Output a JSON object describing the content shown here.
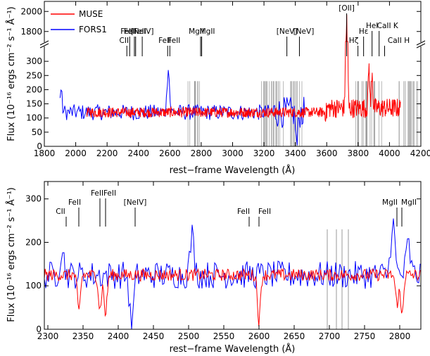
{
  "chart_data": [
    {
      "type": "line",
      "panel": "top",
      "xlabel": "rest−frame Wavelength (Å)",
      "ylabel": "Flux (10⁻¹⁶ ergs cm⁻² s⁻¹ Å⁻¹)",
      "xlim": [
        1800,
        4200
      ],
      "xticks": [
        "1800",
        "2000",
        "2200",
        "2400",
        "2600",
        "2800",
        "3000",
        "3200",
        "3400",
        "3600",
        "3800",
        "4000",
        "4200"
      ],
      "y_axis_break": true,
      "ylim_lower": [
        0,
        350
      ],
      "ylim_upper": [
        1700,
        2100
      ],
      "yticks_lower": [
        "0",
        "50",
        "100",
        "150",
        "200",
        "250",
        "300"
      ],
      "yticks_upper": [
        "1800",
        "2000"
      ],
      "legend": {
        "placement": "top-left",
        "entries": [
          "MUSE",
          "FORS1"
        ]
      },
      "series": [
        {
          "name": "MUSE",
          "color": "#ff0000",
          "x_range": [
            2070,
            4070
          ],
          "continuum": 120,
          "features": [
            {
              "x": 3727,
              "y": 1960
            },
            {
              "x": 3869,
              "y": 270
            },
            {
              "x": 3889,
              "y": 250
            }
          ]
        },
        {
          "name": "FORS1",
          "color": "#0000ff",
          "x_range": [
            1900,
            3460
          ],
          "continuum": 120,
          "features": [
            {
              "x": 1905,
              "y": 200
            },
            {
              "x": 2590,
              "y": 290
            },
            {
              "x": 3410,
              "y": 0
            }
          ]
        }
      ],
      "line_ids": [
        {
          "label": "CII",
          "x": 2326
        },
        {
          "label": "FeII",
          "x": 2344
        },
        {
          "label": "FeII",
          "x": 2374
        },
        {
          "label": "FeII",
          "x": 2382
        },
        {
          "label": "[NeIV]",
          "x": 2424
        },
        {
          "label": "FeII",
          "x": 2586
        },
        {
          "label": "FeII",
          "x": 2600
        },
        {
          "label": "MgII",
          "x": 2796
        },
        {
          "label": "MgII",
          "x": 2803
        },
        {
          "label": "[NeV]",
          "x": 3346
        },
        {
          "label": "[NeV]",
          "x": 3426
        },
        {
          "label": "[OII]",
          "x": 3727
        },
        {
          "label": "Hζ",
          "x": 3799
        },
        {
          "label": "Hε",
          "x": 3835
        },
        {
          "label": "HeI",
          "x": 3889
        },
        {
          "label": "CaII K",
          "x": 3934
        },
        {
          "label": "CaII H",
          "x": 3969
        }
      ],
      "gray_bands_approx": [
        [
          2700,
          2790
        ],
        [
          3150,
          3450
        ],
        [
          3780,
          3960
        ],
        [
          4060,
          4200
        ]
      ]
    },
    {
      "type": "line",
      "panel": "bottom",
      "xlabel": "rest−frame Wavelength (Å)",
      "ylabel": "Flux (10⁻¹⁶ ergs cm⁻² s⁻¹ Å⁻¹)",
      "xlim": [
        2295,
        2830
      ],
      "ylim": [
        0,
        340
      ],
      "xticks": [
        "2300",
        "2350",
        "2400",
        "2450",
        "2500",
        "2550",
        "2600",
        "2650",
        "2700",
        "2750",
        "2800"
      ],
      "yticks": [
        "0",
        "100",
        "200",
        "300"
      ],
      "series": [
        {
          "name": "MUSE",
          "color": "#ff0000",
          "continuum": 125,
          "features": [
            {
              "x": 2344,
              "y": 40
            },
            {
              "x": 2374,
              "y": 45
            },
            {
              "x": 2382,
              "y": 35
            },
            {
              "x": 2600,
              "y": 20
            },
            {
              "x": 2796,
              "y": 60
            },
            {
              "x": 2803,
              "y": 35
            }
          ]
        },
        {
          "name": "FORS1",
          "color": "#0000ff",
          "continuum": 125,
          "features": [
            {
              "x": 2320,
              "y": 185
            },
            {
              "x": 2419,
              "y": 5
            },
            {
              "x": 2505,
              "y": 215
            },
            {
              "x": 2790,
              "y": 250
            },
            {
              "x": 2812,
              "y": 195
            }
          ]
        }
      ],
      "line_ids": [
        {
          "label": "CII",
          "x": 2326
        },
        {
          "label": "FeII",
          "x": 2344
        },
        {
          "label": "FeII",
          "x": 2374
        },
        {
          "label": "FeII",
          "x": 2382
        },
        {
          "label": "[NeIV]",
          "x": 2424
        },
        {
          "label": "FeII",
          "x": 2586
        },
        {
          "label": "FeII",
          "x": 2600
        },
        {
          "label": "MgII",
          "x": 2796
        },
        {
          "label": "MgII",
          "x": 2803
        }
      ],
      "gray_lines": [
        2697,
        2710,
        2718,
        2727
      ]
    }
  ]
}
